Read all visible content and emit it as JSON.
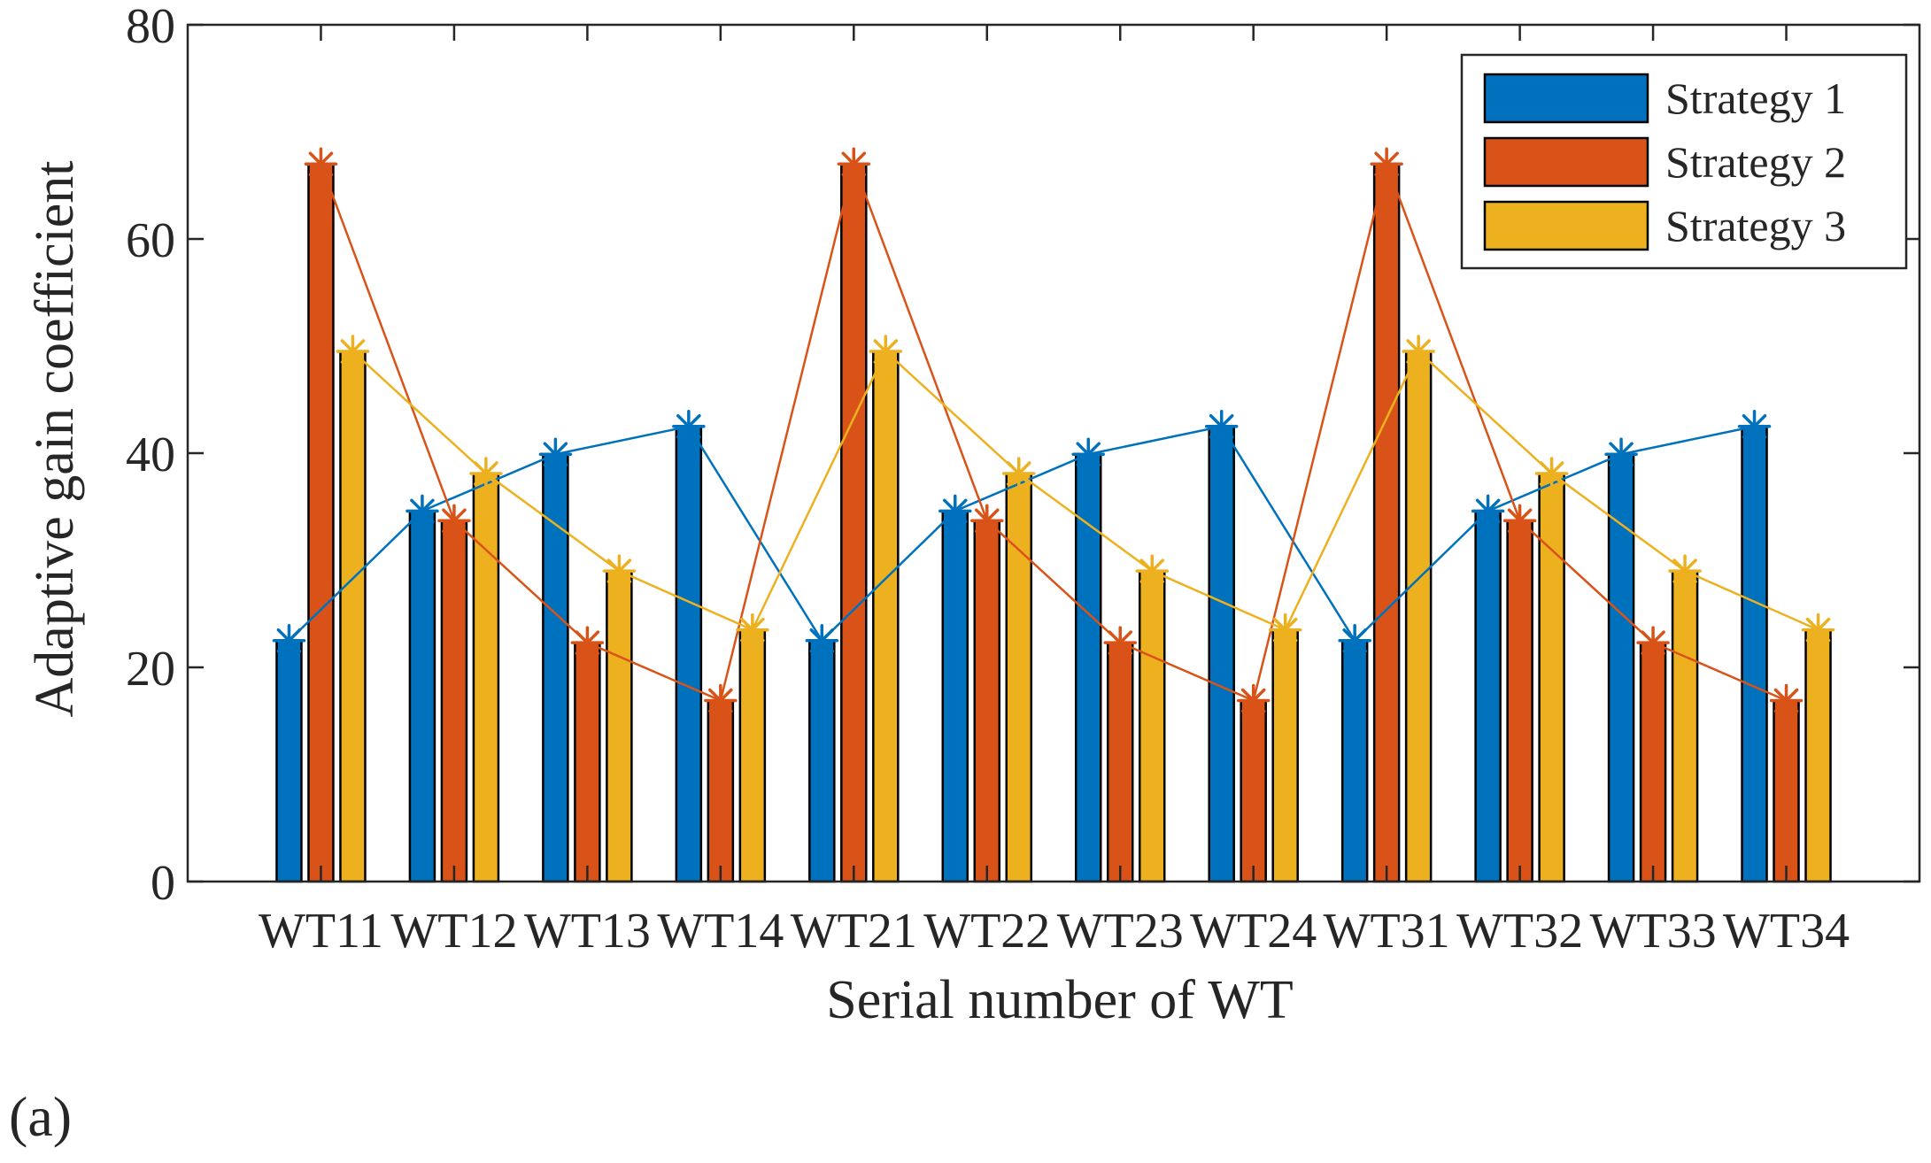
{
  "chart_data": {
    "type": "bar",
    "title": "",
    "xlabel": "Serial number of WT",
    "ylabel": "Adaptive gain coefficient",
    "panel_label": "(a)",
    "categories": [
      "WT11",
      "WT12",
      "WT13",
      "WT14",
      "WT21",
      "WT22",
      "WT23",
      "WT24",
      "WT31",
      "WT32",
      "WT33",
      "WT34"
    ],
    "series": [
      {
        "name": "Strategy 1",
        "color": "#0072BD",
        "values": [
          22.5,
          34.6,
          39.9,
          42.5,
          22.5,
          34.6,
          39.9,
          42.5,
          22.5,
          34.6,
          39.9,
          42.5
        ]
      },
      {
        "name": "Strategy 2",
        "color": "#D95319",
        "values": [
          67.0,
          33.7,
          22.3,
          16.9,
          67.0,
          33.7,
          22.3,
          16.9,
          67.0,
          33.7,
          22.3,
          16.9
        ]
      },
      {
        "name": "Strategy 3",
        "color": "#EDB120",
        "values": [
          49.5,
          38.1,
          29.0,
          23.5,
          49.5,
          38.1,
          29.0,
          23.5,
          49.5,
          38.1,
          29.0,
          23.5
        ]
      }
    ],
    "ylim": [
      0,
      80
    ],
    "yticks": [
      0,
      20,
      40,
      60,
      80
    ],
    "ytick_labels": [
      "0",
      "20",
      "40",
      "60",
      "80"
    ],
    "grid": false,
    "legend_position": "top-right",
    "overlay": "line with asterisk markers per series"
  }
}
